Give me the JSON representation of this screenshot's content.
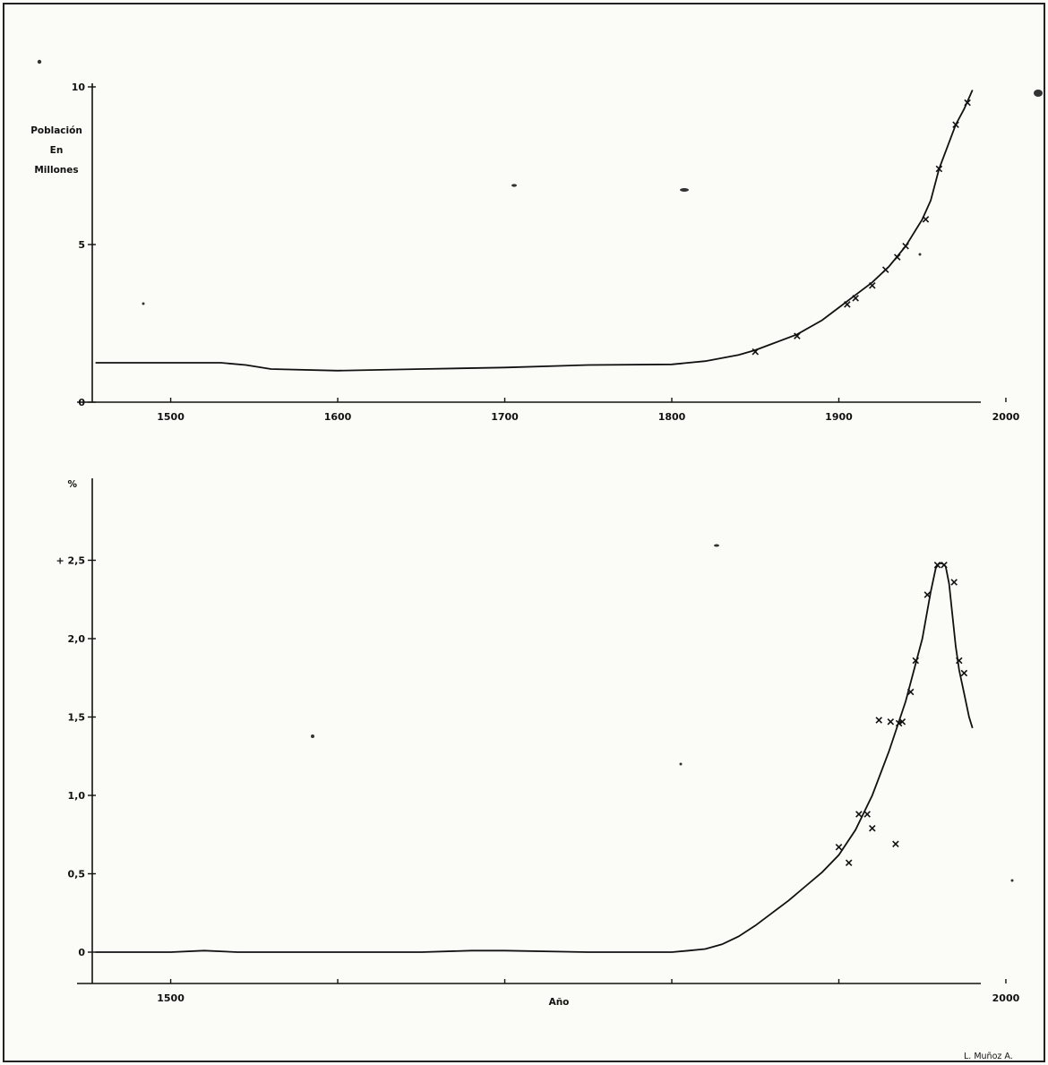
{
  "chart_data": [
    {
      "id": "population",
      "type": "line",
      "title": "",
      "ylabel": [
        "Población",
        "En",
        "Millones"
      ],
      "xlabel": "",
      "xlim": [
        1445,
        1985
      ],
      "ylim": [
        0,
        10
      ],
      "xticks": [
        1500,
        1600,
        1700,
        1800,
        1900,
        2000
      ],
      "xtick_labels": [
        "1500",
        "1600",
        "1700",
        "1800",
        "1900",
        "2000"
      ],
      "yticks": [
        0,
        5,
        10
      ],
      "ytick_labels": [
        "0",
        "5",
        "10"
      ],
      "grid": false,
      "series": [
        {
          "style": "line",
          "x": [
            1455,
            1480,
            1500,
            1520,
            1530,
            1545,
            1560,
            1600,
            1650,
            1700,
            1750,
            1800,
            1820,
            1840,
            1850,
            1860,
            1875,
            1890,
            1900,
            1910,
            1920,
            1930,
            1940,
            1950,
            1955,
            1960,
            1965,
            1970,
            1975,
            1980
          ],
          "y": [
            1.25,
            1.25,
            1.25,
            1.25,
            1.25,
            1.18,
            1.05,
            1.0,
            1.05,
            1.1,
            1.18,
            1.2,
            1.3,
            1.5,
            1.65,
            1.85,
            2.15,
            2.6,
            3.0,
            3.4,
            3.8,
            4.3,
            4.95,
            5.8,
            6.4,
            7.4,
            8.1,
            8.8,
            9.3,
            9.9
          ]
        },
        {
          "style": "marker",
          "marker": "x",
          "x": [
            1850,
            1875,
            1905,
            1910,
            1920,
            1928,
            1935,
            1940,
            1952,
            1960,
            1970,
            1977
          ],
          "y": [
            1.6,
            2.1,
            3.1,
            3.3,
            3.7,
            4.2,
            4.6,
            4.95,
            5.8,
            7.4,
            8.8,
            9.5
          ]
        }
      ]
    },
    {
      "id": "growth-rate",
      "type": "line",
      "title": "",
      "ylabel": "%",
      "xlabel": "Año",
      "xlim": [
        1445,
        1985
      ],
      "ylim": [
        -0.2,
        3.0
      ],
      "xticks": [
        1500,
        2000
      ],
      "xtick_labels": [
        "1500",
        "2000"
      ],
      "minor_xticks": [
        1600,
        1700,
        1800,
        1900
      ],
      "yticks": [
        0,
        0.5,
        1.0,
        1.5,
        2.0,
        2.5
      ],
      "ytick_labels": [
        "0",
        "0,5",
        "1,0",
        "1,5",
        "2,0",
        "+ 2,5"
      ],
      "grid": false,
      "series": [
        {
          "style": "line",
          "x": [
            1455,
            1480,
            1500,
            1520,
            1540,
            1560,
            1600,
            1650,
            1680,
            1700,
            1750,
            1800,
            1810,
            1820,
            1830,
            1840,
            1850,
            1860,
            1870,
            1880,
            1890,
            1900,
            1910,
            1920,
            1930,
            1940,
            1950,
            1955,
            1958,
            1960,
            1962,
            1964,
            1966,
            1968,
            1970,
            1972,
            1975,
            1978,
            1980
          ],
          "y": [
            0,
            0,
            0,
            0.01,
            0,
            0,
            0,
            0,
            0.01,
            0.01,
            0,
            0,
            0.01,
            0.02,
            0.05,
            0.1,
            0.17,
            0.25,
            0.33,
            0.42,
            0.51,
            0.62,
            0.78,
            1.0,
            1.28,
            1.6,
            2.0,
            2.3,
            2.45,
            2.48,
            2.48,
            2.46,
            2.35,
            2.15,
            1.95,
            1.8,
            1.65,
            1.5,
            1.43
          ]
        },
        {
          "style": "marker",
          "marker": "x",
          "x": [
            1900,
            1906,
            1912,
            1917,
            1920,
            1924,
            1931,
            1934,
            1936,
            1938,
            1943,
            1946,
            1953,
            1959,
            1963,
            1969,
            1972,
            1975
          ],
          "y": [
            0.67,
            0.57,
            0.88,
            0.88,
            0.79,
            1.48,
            1.47,
            0.69,
            1.46,
            1.47,
            1.66,
            1.86,
            2.28,
            2.47,
            2.47,
            2.36,
            1.86,
            1.78
          ]
        }
      ]
    }
  ],
  "credit": "L. Muñoz A."
}
